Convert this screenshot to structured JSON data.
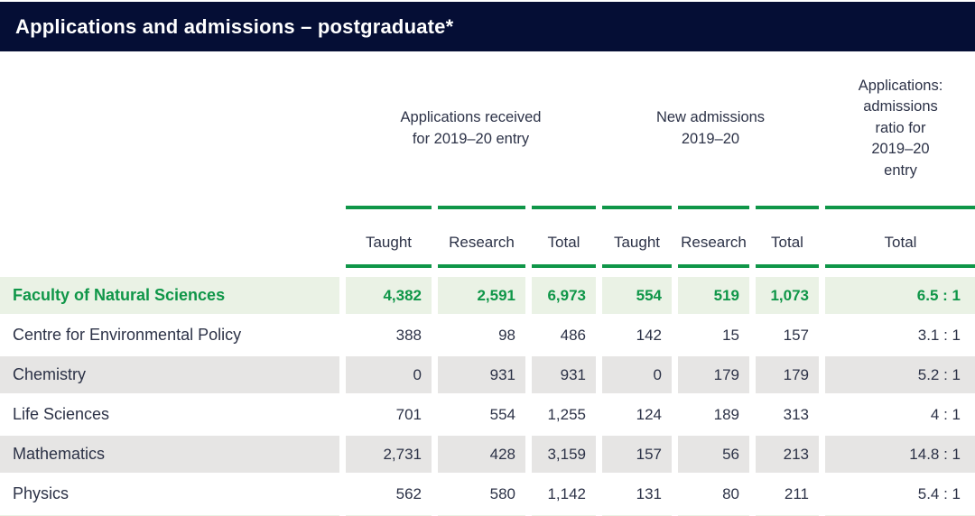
{
  "title": "Applications and admissions – postgraduate*",
  "colors": {
    "header_bar": "#050e35",
    "header_text": "#ffffff",
    "accent_green": "#0f9648",
    "highlight_row_bg": "#eaf2e5",
    "alt_row_bg": "#e6e5e4",
    "body_text": "#2c3247"
  },
  "table": {
    "groups": [
      {
        "name": "applications-received",
        "lines": [
          "Applications received",
          "for 2019–20 entry"
        ]
      },
      {
        "name": "new-admissions",
        "lines": [
          "New admissions",
          "2019–20"
        ]
      },
      {
        "name": "applications-admissions-ratio",
        "lines": [
          "Applications:",
          "admissions",
          "ratio for",
          "2019–20",
          "entry"
        ]
      }
    ],
    "subheaders": [
      "Taught",
      "Research",
      "Total",
      "Taught",
      "Research",
      "Total",
      "Total"
    ],
    "rows": [
      {
        "label": "Faculty of Natural Sciences",
        "highlight": true,
        "values": [
          "4,382",
          "2,591",
          "6,973",
          "554",
          "519",
          "1,073",
          "6.5 : 1"
        ]
      },
      {
        "label": "Centre for Environmental Policy",
        "highlight": false,
        "values": [
          "388",
          "98",
          "486",
          "142",
          "15",
          "157",
          "3.1 : 1"
        ]
      },
      {
        "label": "Chemistry",
        "highlight": false,
        "values": [
          "0",
          "931",
          "931",
          "0",
          "179",
          "179",
          "5.2 : 1"
        ]
      },
      {
        "label": "Life Sciences",
        "highlight": false,
        "values": [
          "701",
          "554",
          "1,255",
          "124",
          "189",
          "313",
          "4 : 1"
        ]
      },
      {
        "label": "Mathematics",
        "highlight": false,
        "values": [
          "2,731",
          "428",
          "3,159",
          "157",
          "56",
          "213",
          "14.8 : 1"
        ]
      },
      {
        "label": "Physics",
        "highlight": false,
        "values": [
          "562",
          "580",
          "1,142",
          "131",
          "80",
          "211",
          "5.4 : 1"
        ]
      }
    ]
  }
}
